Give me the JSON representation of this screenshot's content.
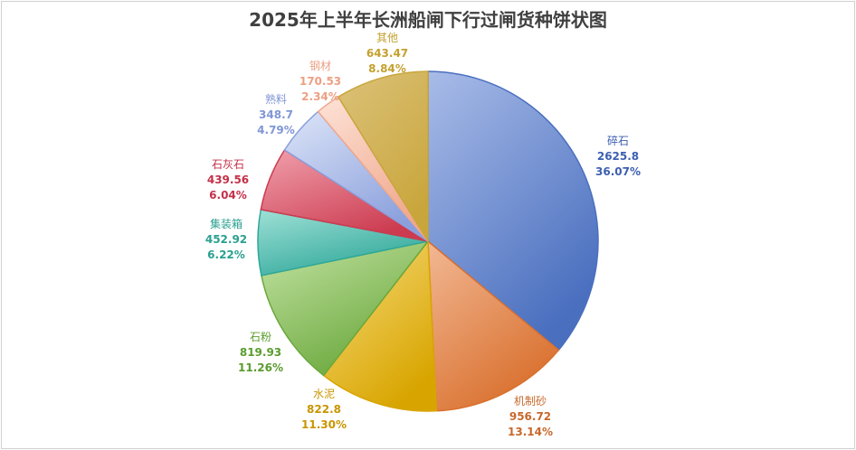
{
  "chart_data": {
    "type": "pie",
    "title": "2025年上半年长洲船闸下行过闸货种饼状图",
    "slices": [
      {
        "name": "碎石",
        "value": 2625.8,
        "pct": "36.07%",
        "color": "#4a6fbf",
        "light": "#a9bce8",
        "text": "#3c5fb0"
      },
      {
        "name": "机制砂",
        "value": 956.72,
        "pct": "13.14%",
        "color": "#d9702e",
        "light": "#f2b894",
        "text": "#c8682c"
      },
      {
        "name": "水泥",
        "value": 822.8,
        "pct": "11.30%",
        "color": "#d8a500",
        "light": "#f7dc80",
        "text": "#c99500"
      },
      {
        "name": "石粉",
        "value": 819.93,
        "pct": "11.26%",
        "color": "#6aa83c",
        "light": "#c4e3a4",
        "text": "#5a9c2e"
      },
      {
        "name": "集装箱",
        "value": 452.92,
        "pct": "6.22%",
        "color": "#2fa89a",
        "light": "#9fe0d6",
        "text": "#2aa090"
      },
      {
        "name": "石灰石",
        "value": 439.56,
        "pct": "6.04%",
        "color": "#cc3b50",
        "light": "#f0a0ac",
        "text": "#c43048"
      },
      {
        "name": "熟料",
        "value": 348.7,
        "pct": "4.79%",
        "color": "#8a9fdc",
        "light": "#dde5f8",
        "text": "#8096d6"
      },
      {
        "name": "钢材",
        "value": 170.53,
        "pct": "2.34%",
        "color": "#f0a88c",
        "light": "#fde3d8",
        "text": "#eda083"
      },
      {
        "name": "其他",
        "value": 643.47,
        "pct": "8.84%",
        "color": "#c9a63c",
        "light": "#dcc27a",
        "text": "#c4a02e"
      }
    ]
  }
}
